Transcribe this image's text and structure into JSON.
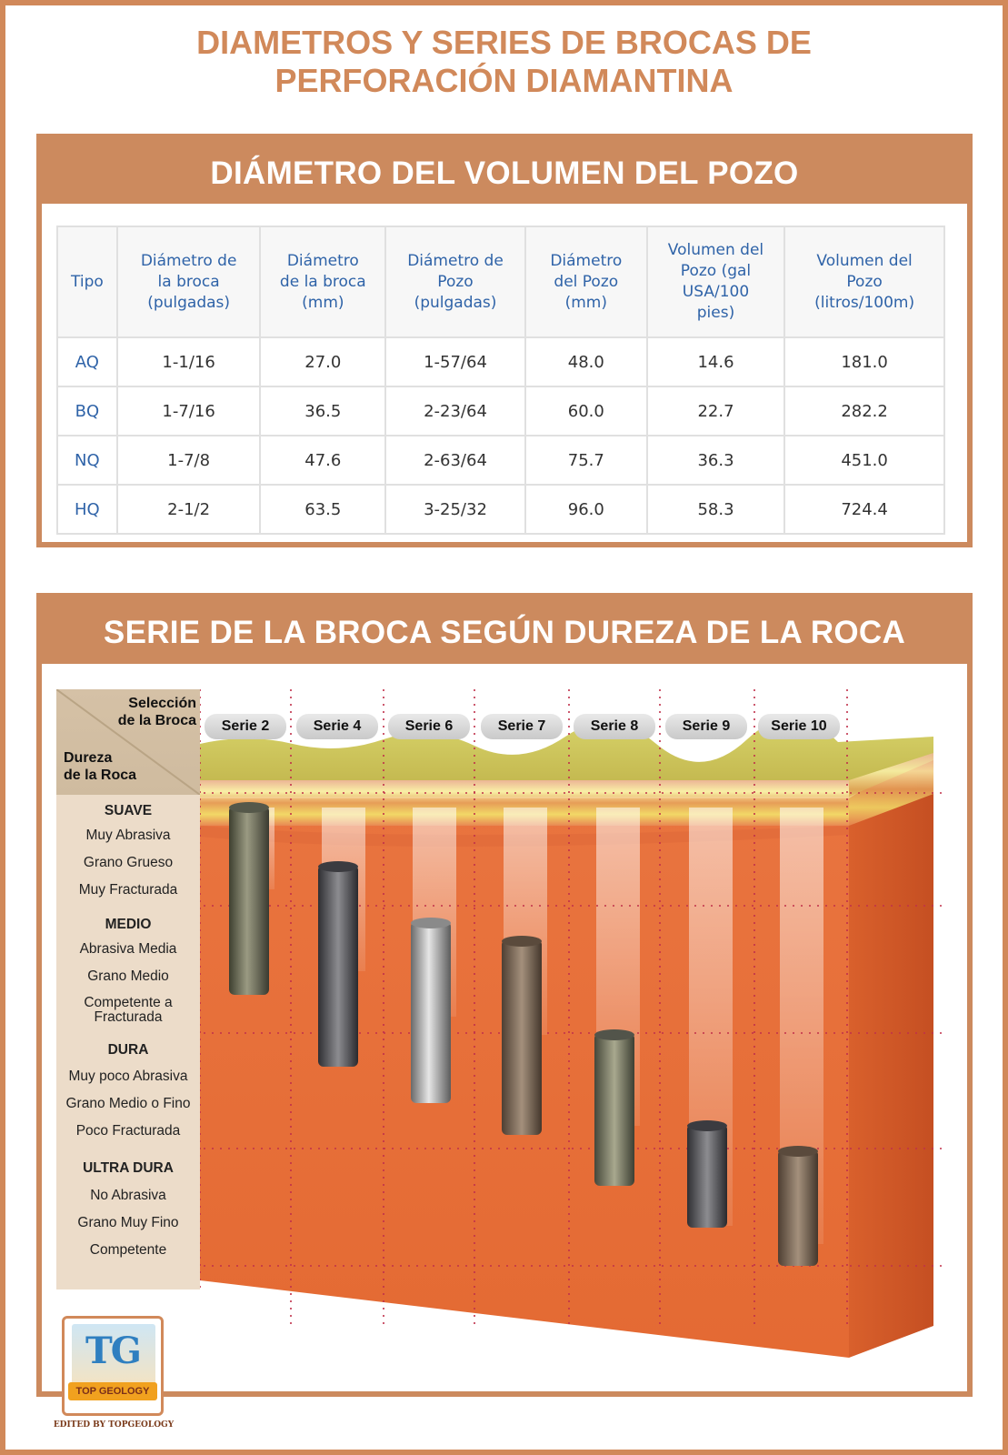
{
  "title": {
    "line1": "DIAMETROS Y SERIES DE BROCAS DE",
    "line2": "PERFORACIÓN DIAMANTINA"
  },
  "volume_table": {
    "heading": "DIÁMETRO DEL VOLUMEN DEL POZO",
    "columns": [
      "Tipo",
      "Diámetro de la broca (pulgadas)",
      "Diámetro de la broca (mm)",
      "Diámetro de Pozo (pulgadas)",
      "Diámetro del Pozo (mm)",
      "Volumen del Pozo (gal USA/100 pies)",
      "Volumen del Pozo (litros/100m)"
    ],
    "rows": [
      [
        "AQ",
        "1-1/16",
        "27.0",
        "1-57/64",
        "48.0",
        "14.6",
        "181.0"
      ],
      [
        "BQ",
        "1-7/16",
        "36.5",
        "2-23/64",
        "60.0",
        "22.7",
        "282.2"
      ],
      [
        "NQ",
        "1-7/8",
        "47.6",
        "2-63/64",
        "75.7",
        "36.3",
        "451.0"
      ],
      [
        "HQ",
        "2-1/2",
        "63.5",
        "3-25/32",
        "96.0",
        "58.3",
        "724.4"
      ]
    ]
  },
  "series_diagram": {
    "heading": "SERIE DE LA BROCA SEGÚN DUREZA DE LA ROCA",
    "corner_top": [
      "Selección",
      "de la Broca"
    ],
    "corner_bottom": [
      "Dureza",
      "de la Roca"
    ],
    "series": [
      "Serie 2",
      "Serie 4",
      "Serie 6",
      "Serie 7",
      "Serie 8",
      "Serie 9",
      "Serie 10"
    ],
    "hardness_groups": [
      {
        "name": "SUAVE",
        "items": [
          "Muy Abrasiva",
          "Grano Grueso",
          "Muy Fracturada"
        ]
      },
      {
        "name": "MEDIO",
        "items": [
          "Abrasiva Media",
          "Grano Medio",
          "Competente a Fracturada"
        ]
      },
      {
        "name": "DURA",
        "items": [
          "Muy  poco Abrasiva",
          "Grano Medio o Fino",
          "Poco Fracturada"
        ]
      },
      {
        "name": "ULTRA DURA",
        "items": [
          "No Abrasiva",
          "Grano Muy Fino",
          "Competente"
        ]
      }
    ]
  },
  "logo": {
    "initials": "TG",
    "name": "TOP GEOLOGY",
    "credit": "EDITED BY TOPGEOLOGY"
  }
}
